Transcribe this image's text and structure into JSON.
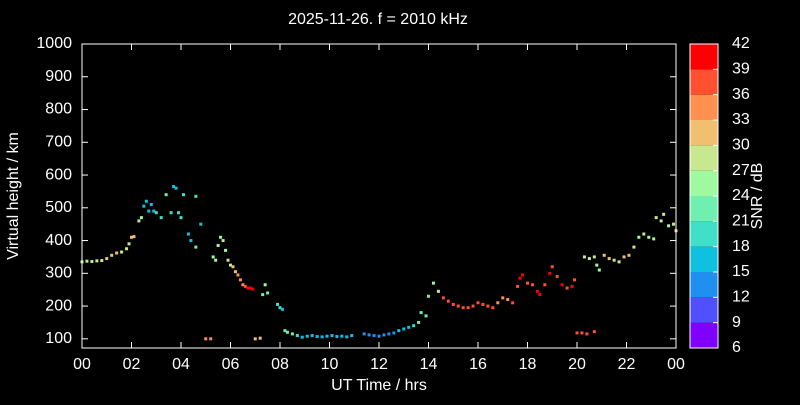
{
  "chart_data": {
    "type": "scatter",
    "title": "2025-11-26. f = 2010 kHz",
    "xlabel": "UT Time / hrs",
    "ylabel": "Virtual height / km",
    "colorbar_label": "SNR / dB",
    "xlim": [
      0,
      24
    ],
    "xticks": [
      {
        "value": 0,
        "label": "00"
      },
      {
        "value": 2,
        "label": "02"
      },
      {
        "value": 4,
        "label": "04"
      },
      {
        "value": 6,
        "label": "06"
      },
      {
        "value": 8,
        "label": "08"
      },
      10,
      12,
      14,
      16,
      18,
      20,
      22,
      {
        "value": 24,
        "label": "00"
      }
    ],
    "ylim": [
      72,
      1000
    ],
    "yticks": [
      100,
      200,
      300,
      400,
      500,
      600,
      700,
      800,
      900,
      1000
    ],
    "clim": [
      6,
      42
    ],
    "cticks": [
      6,
      9,
      12,
      15,
      18,
      21,
      24,
      27,
      30,
      33,
      36,
      39,
      42
    ],
    "colormap": [
      "#8000ff",
      "#5050ff",
      "#2090f0",
      "#10c0e0",
      "#40e0c8",
      "#70f0b0",
      "#a0f8a0",
      "#c8e890",
      "#f0c070",
      "#ff9050",
      "#ff5030",
      "#ff0000"
    ],
    "x": [
      0.0,
      0.2,
      0.4,
      0.6,
      0.8,
      1.0,
      1.2,
      1.4,
      1.6,
      1.8,
      1.9,
      2.0,
      2.1,
      2.3,
      2.4,
      2.5,
      2.6,
      2.7,
      2.8,
      2.9,
      3.0,
      3.2,
      3.4,
      3.6,
      3.7,
      3.8,
      3.9,
      4.0,
      4.1,
      4.3,
      4.4,
      4.6,
      4.8,
      4.6,
      5.0,
      5.2,
      5.3,
      5.4,
      5.5,
      5.6,
      5.7,
      5.8,
      5.9,
      6.0,
      6.1,
      6.2,
      6.3,
      6.4,
      6.5,
      6.6,
      6.7,
      6.8,
      6.9,
      7.0,
      7.2,
      7.3,
      7.5,
      7.4,
      7.9,
      8.0,
      8.1,
      8.2,
      8.3,
      8.5,
      8.7,
      8.9,
      9.1,
      9.3,
      9.5,
      9.7,
      9.9,
      10.1,
      10.3,
      10.5,
      10.7,
      10.9,
      11.4,
      11.6,
      11.8,
      12.0,
      12.2,
      12.4,
      12.6,
      12.8,
      13.0,
      13.2,
      13.4,
      13.6,
      13.7,
      13.9,
      14.0,
      14.2,
      14.4,
      14.6,
      14.8,
      15.0,
      15.2,
      15.4,
      15.6,
      15.8,
      16.0,
      16.2,
      16.4,
      16.6,
      16.8,
      17.0,
      17.2,
      17.4,
      17.6,
      17.7,
      17.8,
      18.0,
      18.2,
      18.4,
      18.5,
      18.7,
      18.9,
      19.0,
      19.2,
      19.4,
      19.6,
      19.8,
      19.9,
      20.0,
      20.2,
      20.4,
      20.7,
      20.3,
      20.5,
      20.7,
      20.8,
      20.9,
      21.1,
      21.3,
      21.5,
      21.7,
      21.9,
      22.1,
      22.3,
      22.5,
      22.7,
      22.9,
      23.1,
      23.2,
      23.4,
      23.5,
      23.7,
      23.9,
      24.0
    ],
    "values": [
      335,
      337,
      336,
      338,
      339,
      345,
      355,
      362,
      365,
      375,
      390,
      410,
      412,
      460,
      470,
      505,
      520,
      490,
      510,
      490,
      485,
      470,
      540,
      485,
      565,
      560,
      485,
      470,
      540,
      420,
      400,
      535,
      450,
      380,
      100,
      100,
      350,
      340,
      385,
      410,
      400,
      370,
      340,
      325,
      320,
      305,
      295,
      280,
      265,
      260,
      255,
      255,
      252,
      100,
      102,
      235,
      240,
      265,
      205,
      195,
      190,
      125,
      120,
      115,
      110,
      105,
      108,
      110,
      107,
      106,
      108,
      110,
      107,
      108,
      106,
      110,
      115,
      112,
      110,
      108,
      112,
      115,
      118,
      125,
      130,
      135,
      140,
      150,
      180,
      170,
      230,
      270,
      245,
      225,
      215,
      205,
      200,
      195,
      195,
      200,
      210,
      205,
      200,
      195,
      210,
      225,
      220,
      210,
      260,
      285,
      295,
      270,
      265,
      245,
      235,
      265,
      300,
      320,
      290,
      265,
      255,
      260,
      280,
      118,
      118,
      115,
      122,
      350,
      345,
      350,
      325,
      310,
      355,
      345,
      340,
      335,
      350,
      355,
      380,
      410,
      420,
      410,
      405,
      470,
      460,
      480,
      445,
      450,
      430
    ],
    "snr": [
      28,
      27,
      27,
      28,
      27,
      30,
      31,
      30,
      28,
      27,
      27,
      30,
      30,
      27,
      25,
      17,
      16,
      17,
      16,
      17,
      18,
      20,
      21,
      20,
      17,
      17,
      18,
      19,
      20,
      17,
      17,
      20,
      15,
      21,
      33,
      33,
      24,
      24,
      24,
      26,
      27,
      26,
      28,
      29,
      30,
      32,
      33,
      34,
      35,
      36,
      39,
      39,
      40,
      32,
      31,
      22,
      22,
      24,
      18,
      18,
      17,
      23,
      22,
      21,
      20,
      17,
      17,
      16,
      16,
      17,
      16,
      17,
      16,
      16,
      16,
      16,
      13,
      14,
      13,
      13,
      12,
      13,
      14,
      15,
      15,
      16,
      20,
      22,
      22,
      21,
      22,
      24,
      27,
      36,
      37,
      37,
      37,
      37,
      37,
      36,
      37,
      37,
      37,
      36,
      35,
      34,
      35,
      37,
      38,
      39,
      40,
      37,
      38,
      39,
      39,
      38,
      39,
      38,
      38,
      39,
      38,
      39,
      38,
      38,
      37,
      37,
      36,
      28,
      29,
      28,
      26,
      25,
      31,
      30,
      28,
      28,
      30,
      30,
      28,
      26,
      27,
      25,
      26,
      27,
      28,
      27,
      26,
      29,
      31
    ]
  }
}
